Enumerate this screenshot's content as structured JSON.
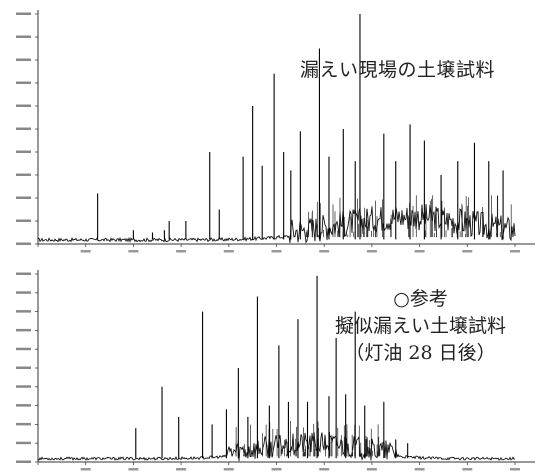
{
  "chart_data": [
    {
      "type": "line",
      "title": "漏えい現場の土壌試料",
      "xlabel": "",
      "ylabel": "",
      "xlim": [
        0,
        20
      ],
      "ylim": [
        0,
        10
      ],
      "peaks": [
        {
          "x": 2.5,
          "y": 2.2
        },
        {
          "x": 4.0,
          "y": 0.6
        },
        {
          "x": 4.8,
          "y": 0.5
        },
        {
          "x": 5.3,
          "y": 0.6
        },
        {
          "x": 5.5,
          "y": 1.0
        },
        {
          "x": 6.2,
          "y": 1.0
        },
        {
          "x": 7.2,
          "y": 4.0
        },
        {
          "x": 7.6,
          "y": 1.5
        },
        {
          "x": 8.6,
          "y": 3.8
        },
        {
          "x": 9.0,
          "y": 6.0
        },
        {
          "x": 9.4,
          "y": 3.4
        },
        {
          "x": 9.9,
          "y": 7.4
        },
        {
          "x": 10.3,
          "y": 4.0
        },
        {
          "x": 10.6,
          "y": 3.2
        },
        {
          "x": 11.0,
          "y": 4.9
        },
        {
          "x": 11.8,
          "y": 8.5
        },
        {
          "x": 12.2,
          "y": 3.8
        },
        {
          "x": 12.8,
          "y": 5.0
        },
        {
          "x": 13.3,
          "y": 3.6
        },
        {
          "x": 13.5,
          "y": 10.0
        },
        {
          "x": 14.5,
          "y": 4.8
        },
        {
          "x": 15.0,
          "y": 3.6
        },
        {
          "x": 15.6,
          "y": 5.2
        },
        {
          "x": 16.2,
          "y": 4.5
        },
        {
          "x": 16.9,
          "y": 3.0
        },
        {
          "x": 17.6,
          "y": 3.6
        },
        {
          "x": 18.3,
          "y": 4.4
        },
        {
          "x": 18.9,
          "y": 3.6
        },
        {
          "x": 19.5,
          "y": 3.2
        }
      ],
      "hump": {
        "center": 15.5,
        "width": 5.5,
        "height": 0.8
      }
    },
    {
      "type": "line",
      "title_lines": [
        "○参考",
        "擬似漏えい土壌試料",
        "（灯油 28 日後）"
      ],
      "xlabel": "",
      "ylabel": "",
      "xlim": [
        0,
        20
      ],
      "ylim": [
        0,
        10
      ],
      "peaks": [
        {
          "x": 4.1,
          "y": 1.8
        },
        {
          "x": 5.2,
          "y": 4.0
        },
        {
          "x": 5.9,
          "y": 2.4
        },
        {
          "x": 6.9,
          "y": 8.0
        },
        {
          "x": 7.3,
          "y": 2.0
        },
        {
          "x": 7.9,
          "y": 2.8
        },
        {
          "x": 8.4,
          "y": 5.0
        },
        {
          "x": 8.8,
          "y": 2.4
        },
        {
          "x": 9.2,
          "y": 8.8
        },
        {
          "x": 9.7,
          "y": 3.0
        },
        {
          "x": 10.1,
          "y": 6.2
        },
        {
          "x": 10.5,
          "y": 3.2
        },
        {
          "x": 10.9,
          "y": 7.6
        },
        {
          "x": 11.3,
          "y": 3.2
        },
        {
          "x": 11.7,
          "y": 9.9
        },
        {
          "x": 12.2,
          "y": 3.5
        },
        {
          "x": 12.5,
          "y": 6.6
        },
        {
          "x": 12.9,
          "y": 3.6
        },
        {
          "x": 13.3,
          "y": 8.0
        },
        {
          "x": 13.7,
          "y": 3.0
        },
        {
          "x": 14.5,
          "y": 3.2
        },
        {
          "x": 15.0,
          "y": 1.2
        },
        {
          "x": 15.5,
          "y": 1.0
        }
      ],
      "hump": {
        "center": 11.5,
        "width": 4.0,
        "height": 0.6
      }
    }
  ]
}
